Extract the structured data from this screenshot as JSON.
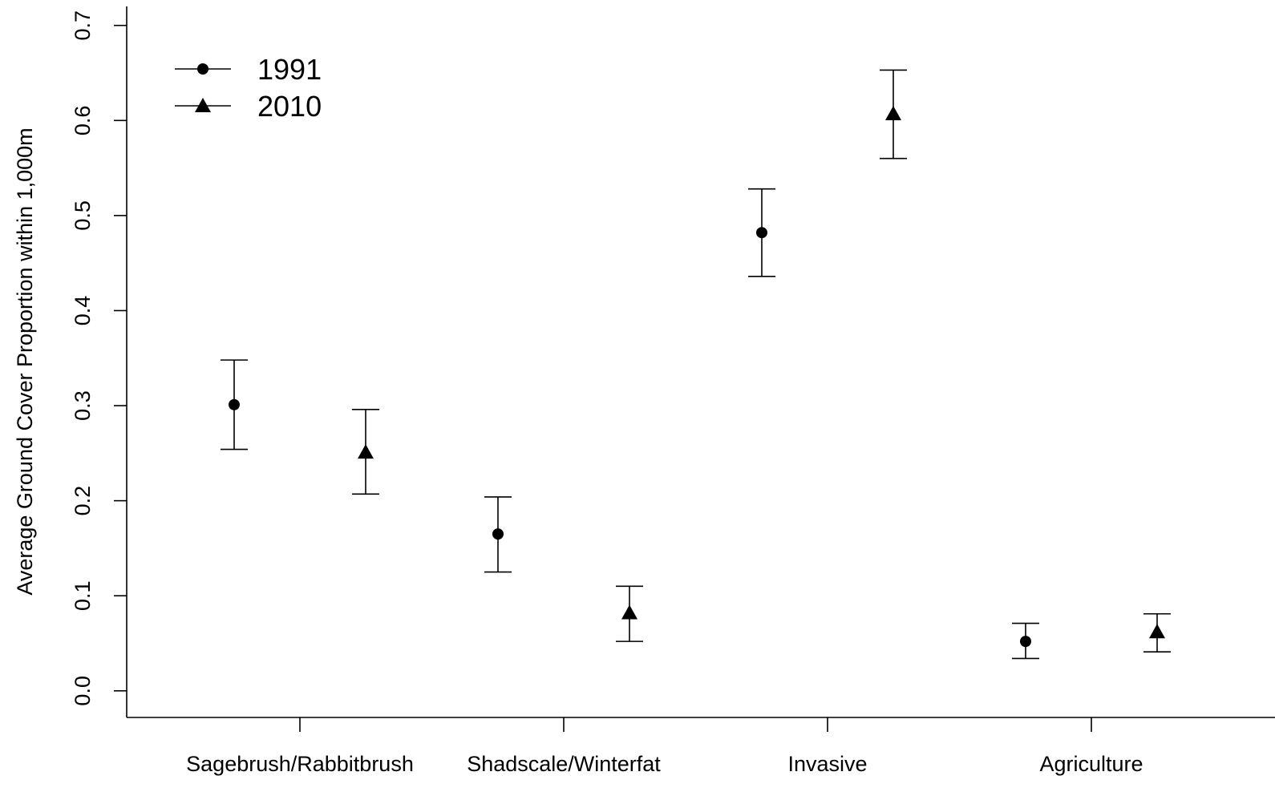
{
  "chart_data": {
    "type": "scatter",
    "title": "",
    "xlabel": "",
    "ylabel": "Average Ground Cover Proportion within 1,000m",
    "categories": [
      "Sagebrush/Rabbitbrush",
      "Shadscale/Winterfat",
      "Invasive",
      "Agriculture"
    ],
    "ylim": [
      -0.028,
      0.72
    ],
    "yticks": [
      "0.0",
      "0.1",
      "0.2",
      "0.3",
      "0.4",
      "0.5",
      "0.6",
      "0.7"
    ],
    "grid": false,
    "legend_position": "top-left",
    "series": [
      {
        "name": "1991",
        "marker": "circle",
        "values": [
          0.301,
          0.165,
          0.482,
          0.052
        ],
        "lower": [
          0.254,
          0.125,
          0.436,
          0.034
        ],
        "upper": [
          0.348,
          0.204,
          0.528,
          0.071
        ]
      },
      {
        "name": "2010",
        "marker": "triangle",
        "values": [
          0.251,
          0.082,
          0.607,
          0.062
        ],
        "lower": [
          0.207,
          0.052,
          0.56,
          0.041
        ],
        "upper": [
          0.296,
          0.11,
          0.653,
          0.081
        ]
      }
    ]
  }
}
